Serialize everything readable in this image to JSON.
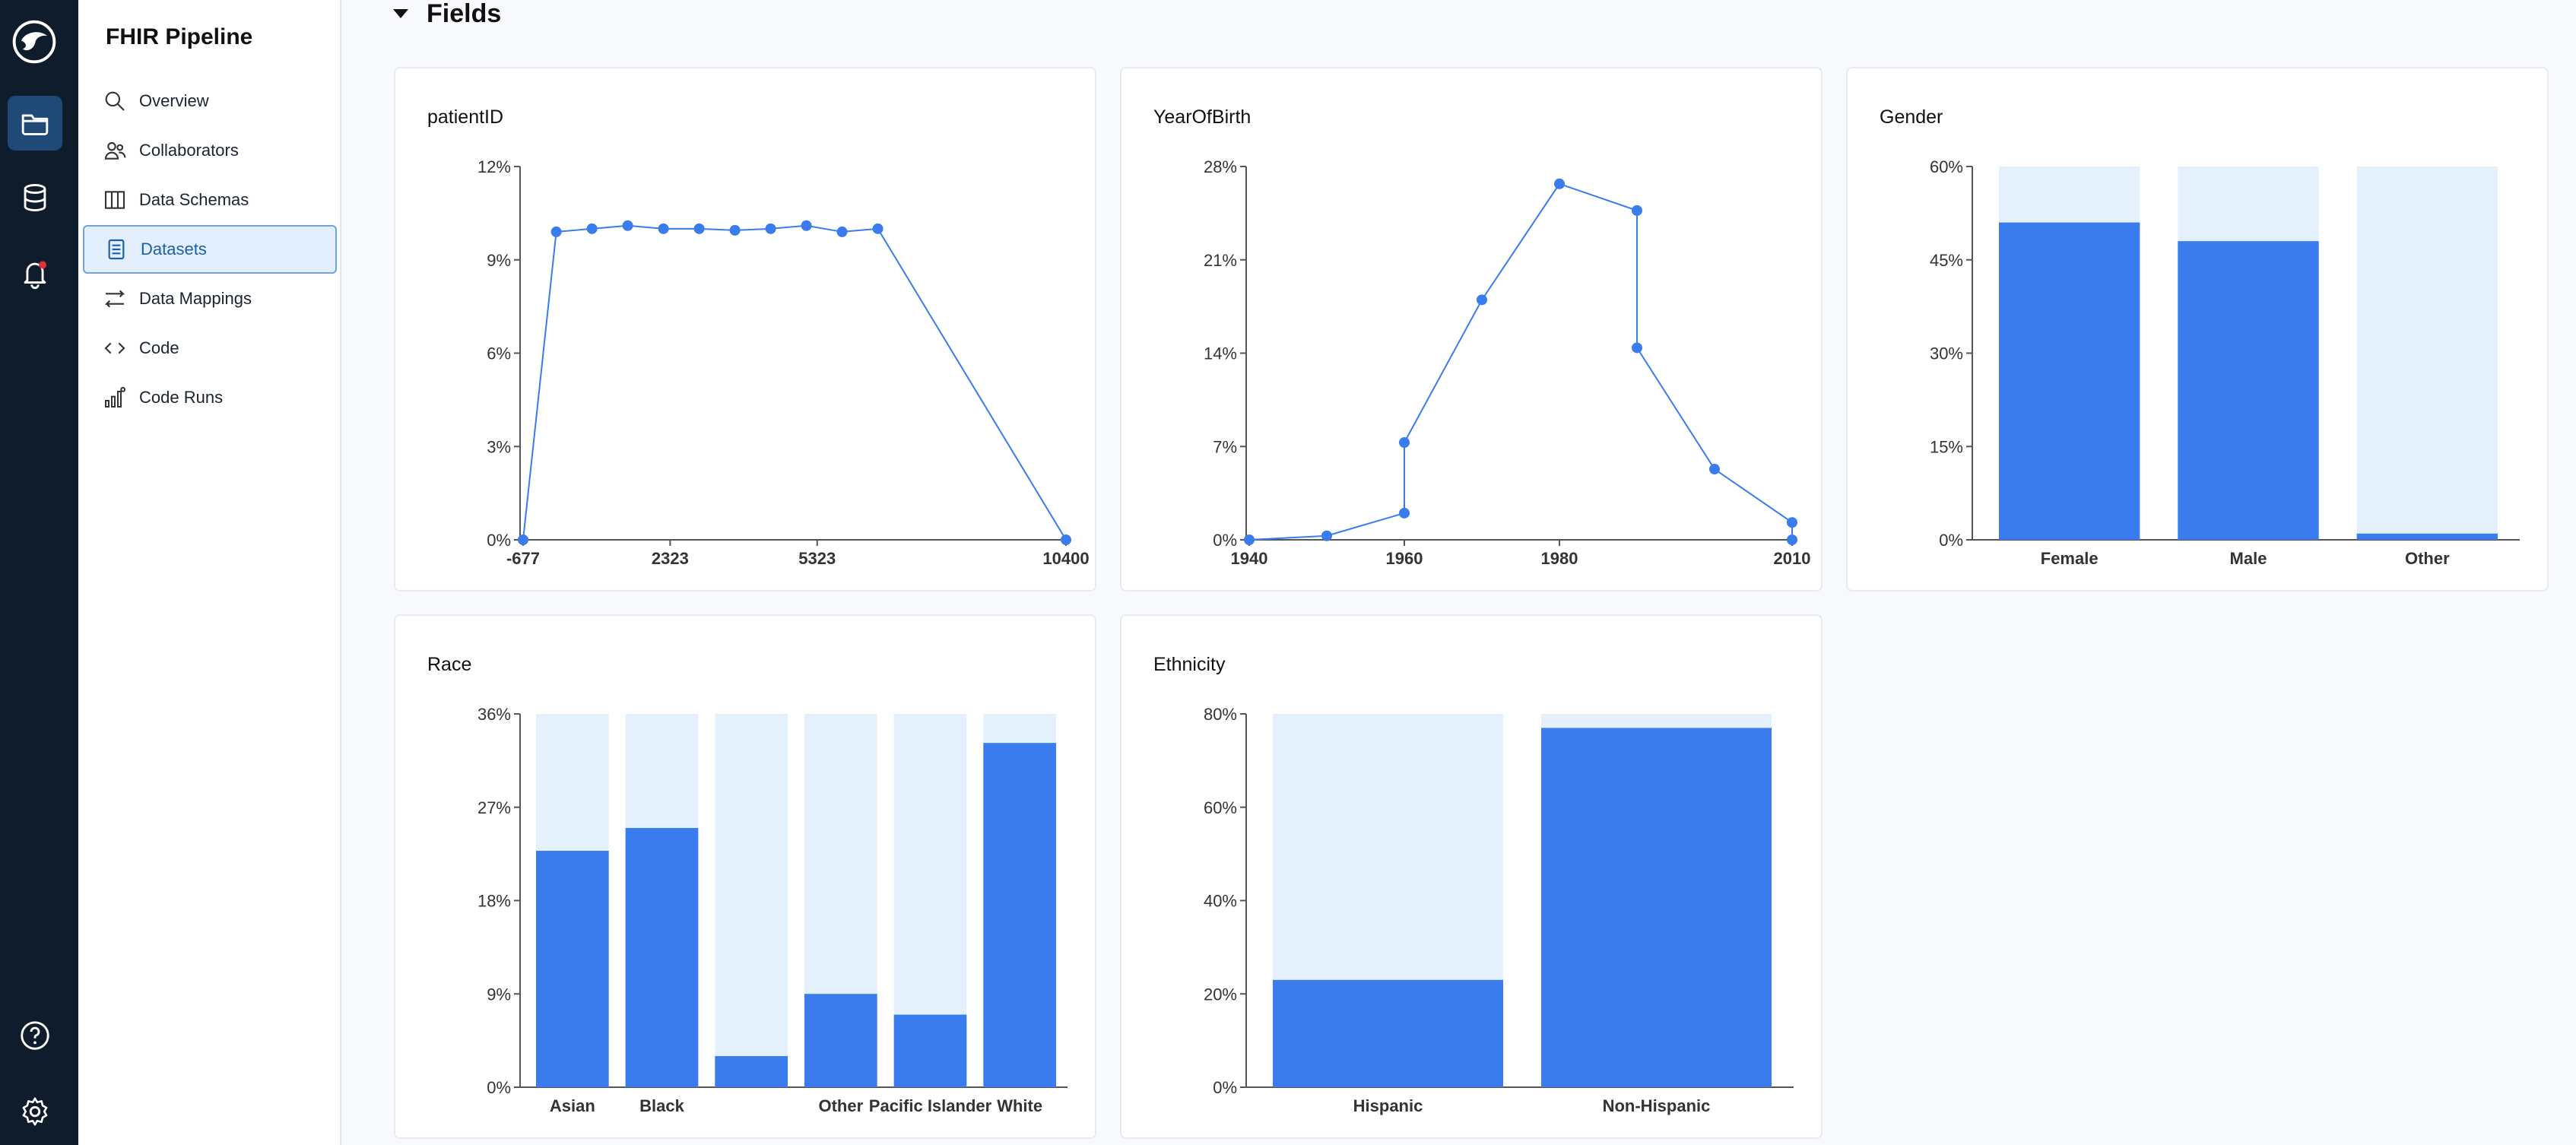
{
  "app": {
    "title": "FHIR Pipeline"
  },
  "rail": {
    "items": [
      {
        "icon": "logo-icon"
      },
      {
        "icon": "folder-icon",
        "active": true
      },
      {
        "icon": "database-icon"
      },
      {
        "icon": "bell-icon",
        "has_notification": true
      },
      {
        "icon": "help-icon"
      },
      {
        "icon": "gear-icon"
      }
    ]
  },
  "sidebar": {
    "items": [
      {
        "label": "Overview",
        "icon": "search-icon"
      },
      {
        "label": "Collaborators",
        "icon": "users-icon"
      },
      {
        "label": "Data Schemas",
        "icon": "columns-icon"
      },
      {
        "label": "Datasets",
        "icon": "document-icon",
        "active": true
      },
      {
        "label": "Data Mappings",
        "icon": "arrows-icon"
      },
      {
        "label": "Code",
        "icon": "code-icon"
      },
      {
        "label": "Code Runs",
        "icon": "bar-chart-icon"
      }
    ]
  },
  "section": {
    "title": "Fields"
  },
  "colors": {
    "accent": "#3a7bed",
    "bar_background": "#e4f0fc",
    "rail": "#0e1c2b"
  },
  "chart_data": [
    {
      "type": "line",
      "title": "patientID",
      "x": [
        -677,
        0,
        729,
        1458,
        2187,
        2916,
        3645,
        4374,
        5103,
        5832,
        6561,
        10400
      ],
      "y": [
        0,
        9.9,
        10.0,
        10.1,
        10.0,
        10.0,
        9.95,
        10.0,
        10.1,
        9.9,
        10.0,
        0
      ],
      "xticks": [
        "-677",
        "2323",
        "5323",
        "10400"
      ],
      "xtick_values": [
        -677,
        2323,
        5323,
        10400
      ],
      "yticks": [
        "0%",
        "3%",
        "6%",
        "9%",
        "12%"
      ],
      "ylim": [
        0,
        12
      ]
    },
    {
      "type": "line",
      "title": "YearOfBirth",
      "x": [
        1940,
        1950,
        1960,
        1960,
        1970,
        1980,
        1990,
        1990,
        2000,
        2010,
        2010
      ],
      "y": [
        0,
        0.3,
        2.0,
        7.3,
        18.0,
        26.7,
        24.7,
        14.4,
        5.3,
        1.3,
        0
      ],
      "xticks": [
        "1940",
        "1960",
        "1980",
        "2010"
      ],
      "xtick_values": [
        1940,
        1960,
        1980,
        2010
      ],
      "yticks": [
        "0%",
        "7%",
        "14%",
        "21%",
        "28%"
      ],
      "ylim": [
        0,
        28
      ]
    },
    {
      "type": "bar",
      "title": "Gender",
      "categories": [
        "Female",
        "Male",
        "Other"
      ],
      "values": [
        51,
        48,
        1
      ],
      "yticks": [
        "0%",
        "15%",
        "30%",
        "45%",
        "60%"
      ],
      "ylim": [
        0,
        60
      ]
    },
    {
      "type": "bar",
      "title": "Race",
      "categories": [
        "Asian",
        "Black",
        "",
        "Other",
        "Pacific Islander",
        "White"
      ],
      "values": [
        22.8,
        25,
        3,
        9,
        7,
        33.2
      ],
      "yticks": [
        "0%",
        "9%",
        "18%",
        "27%",
        "36%"
      ],
      "ylim": [
        0,
        36
      ]
    },
    {
      "type": "bar",
      "title": "Ethnicity",
      "categories": [
        "Hispanic",
        "Non-Hispanic"
      ],
      "values": [
        23,
        77
      ],
      "yticks": [
        "0%",
        "20%",
        "40%",
        "60%",
        "80%"
      ],
      "ylim": [
        0,
        80
      ]
    }
  ]
}
